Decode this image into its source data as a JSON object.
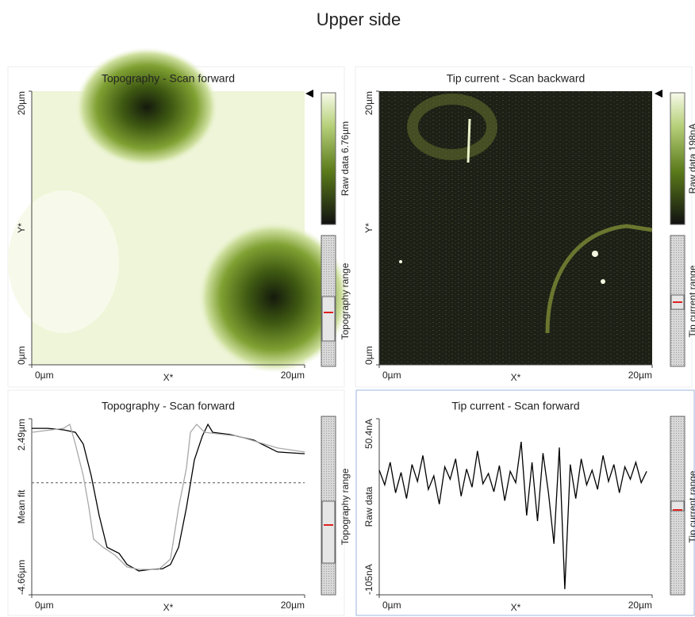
{
  "title": "Upper side",
  "images": [
    {
      "title": "Topography - Scan forward",
      "xlabel": "X*",
      "ylabel": "Y*",
      "xticks": [
        {
          "value": 0,
          "label": "0µm"
        },
        {
          "value": 20,
          "label": "20µm"
        }
      ],
      "yticks": [
        {
          "value": 0,
          "label": "0µm"
        },
        {
          "value": 20,
          "label": "20µm"
        }
      ],
      "xlim": [
        0,
        20
      ],
      "ylim": [
        0,
        20
      ],
      "colorbar_label": "Raw data 6.76µm",
      "range_label": "Topography range"
    },
    {
      "title": "Tip current - Scan backward",
      "xlabel": "X*",
      "ylabel": "Y*",
      "xticks": [
        {
          "value": 0,
          "label": "0µm"
        },
        {
          "value": 20,
          "label": "20µm"
        }
      ],
      "yticks": [
        {
          "value": 0,
          "label": "0µm"
        },
        {
          "value": 20,
          "label": "20µm"
        }
      ],
      "xlim": [
        0,
        20
      ],
      "ylim": [
        0,
        20
      ],
      "colorbar_label": "Raw data 198nA",
      "range_label": "Tip current range"
    }
  ],
  "chart_data": [
    {
      "type": "line",
      "title": "Topography - Scan forward",
      "xlabel": "X*",
      "ylabel": "Mean fit",
      "range_label": "Topography range",
      "xlim": [
        0,
        20
      ],
      "xticks": [
        {
          "value": 0,
          "label": "0µm"
        },
        {
          "value": 20,
          "label": "20µm"
        }
      ],
      "ylim": [
        -4.66,
        2.49
      ],
      "yticks": [
        {
          "value": -4.66,
          "label": "-4.66µm"
        },
        {
          "value": 2.49,
          "label": "2.49µm"
        }
      ],
      "mean_fit": -0.11,
      "series": [
        {
          "color": "#000000",
          "x": [
            0,
            1.16,
            2.33,
            3.2,
            3.78,
            4.36,
            4.94,
            5.52,
            6.4,
            6.98,
            7.85,
            8.72,
            9.59,
            10.17,
            10.76,
            11.34,
            11.92,
            12.5,
            12.91,
            13.26,
            14.53,
            16.28,
            18.02,
            20
          ],
          "values": [
            2.1,
            2.1,
            2.04,
            1.94,
            1.46,
            0.17,
            -1.44,
            -2.73,
            -2.98,
            -3.43,
            -3.69,
            -3.63,
            -3.6,
            -3.43,
            -2.73,
            -1.12,
            0.82,
            1.78,
            2.26,
            1.94,
            1.85,
            1.62,
            1.14,
            1.07
          ]
        },
        {
          "color": "#a8a8a8",
          "x": [
            0,
            2.33,
            2.79,
            3.2,
            3.78,
            4.19,
            4.53,
            5.23,
            6.1,
            6.98,
            7.85,
            9.3,
            10.17,
            10.76,
            11.34,
            11.63,
            12.09,
            12.67,
            15.12,
            18.02,
            20
          ],
          "values": [
            1.94,
            2.1,
            2.26,
            1.46,
            0.17,
            -1.12,
            -2.4,
            -2.73,
            -3.05,
            -3.53,
            -3.63,
            -3.63,
            -3.21,
            -1.12,
            0.49,
            1.94,
            2.26,
            1.94,
            1.78,
            1.3,
            1.14
          ]
        }
      ]
    },
    {
      "type": "line",
      "title": "Tip current - Scan forward",
      "xlabel": "X*",
      "ylabel": "Raw data",
      "range_label": "Tip current range",
      "xlim": [
        0,
        20
      ],
      "xticks": [
        {
          "value": 0,
          "label": "0µm"
        },
        {
          "value": 20,
          "label": "20µm"
        }
      ],
      "ylim": [
        -105,
        50.4
      ],
      "yticks": [
        {
          "value": -105,
          "label": "-105nA"
        },
        {
          "value": 50.4,
          "label": "50.4nA"
        }
      ],
      "series": [
        {
          "color": "#000000",
          "x": [
            0,
            0.4,
            0.8,
            1.2,
            1.6,
            2,
            2.4,
            2.8,
            3.2,
            3.6,
            4,
            4.4,
            4.8,
            5.2,
            5.6,
            6,
            6.4,
            6.8,
            7.2,
            7.6,
            8,
            8.4,
            8.8,
            9.2,
            9.6,
            10,
            10.4,
            10.8,
            11.2,
            11.6,
            12,
            12.4,
            12.8,
            13.2,
            13.6,
            14,
            14.4,
            14.8,
            15.2,
            15.6,
            16,
            16.4,
            16.8,
            17.2,
            17.6,
            18,
            18.4,
            18.8,
            19.2,
            19.6
          ],
          "values": [
            5,
            -8,
            12,
            -15,
            3,
            -20,
            10,
            -5,
            18,
            -12,
            0,
            -25,
            8,
            -3,
            15,
            -18,
            6,
            -10,
            22,
            -7,
            2,
            -14,
            9,
            -22,
            4,
            -6,
            30,
            -35,
            12,
            -40,
            20,
            -15,
            -60,
            25,
            -100,
            10,
            -20,
            15,
            -8,
            5,
            -12,
            18,
            -5,
            10,
            -15,
            8,
            -3,
            12,
            -6,
            4
          ]
        }
      ]
    }
  ]
}
